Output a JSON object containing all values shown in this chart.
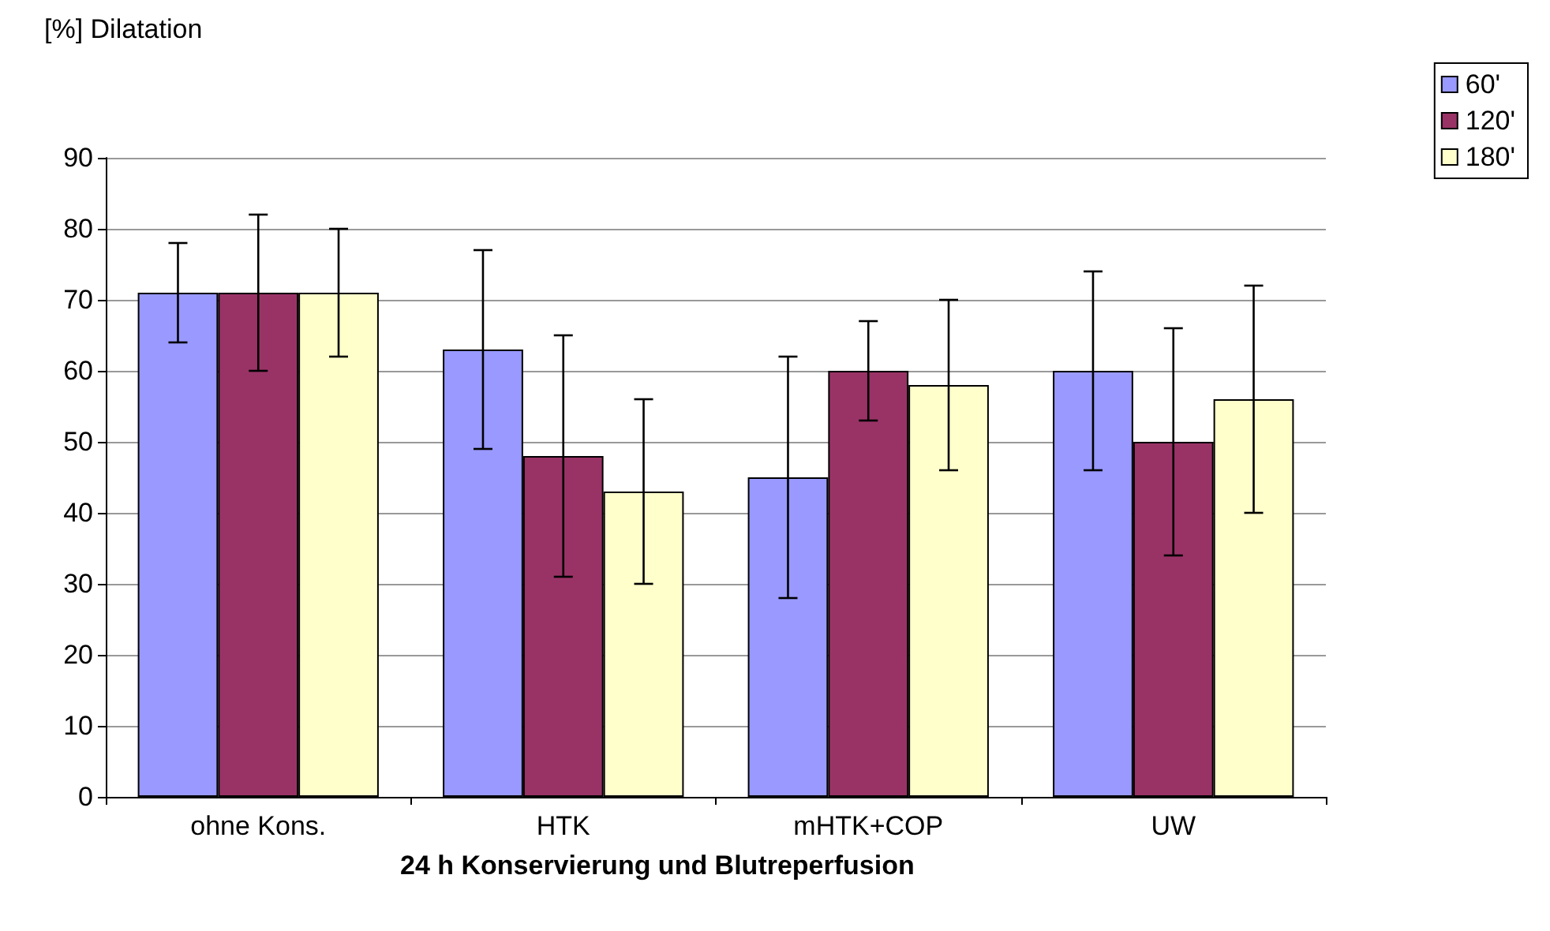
{
  "chart_data": {
    "type": "bar",
    "ylabel": "[%] Dilatation",
    "xlabel": "24 h Konservierung und Blutreperfusion",
    "categories": [
      "ohne Kons.",
      "HTK",
      "mHTK+COP",
      "UW"
    ],
    "series": [
      {
        "name": "60'",
        "color": "#9999ff",
        "values": [
          71,
          63,
          45,
          60
        ],
        "errors": [
          [
            64,
            78
          ],
          [
            49,
            77
          ],
          [
            28,
            62
          ],
          [
            46,
            74
          ]
        ]
      },
      {
        "name": "120'",
        "color": "#993366",
        "values": [
          71,
          48,
          60,
          50
        ],
        "errors": [
          [
            60,
            82
          ],
          [
            31,
            65
          ],
          [
            53,
            67
          ],
          [
            34,
            66
          ]
        ]
      },
      {
        "name": "180'",
        "color": "#ffffcc",
        "values": [
          71,
          43,
          58,
          56
        ],
        "errors": [
          [
            62,
            80
          ],
          [
            30,
            56
          ],
          [
            46,
            70
          ],
          [
            40,
            72
          ]
        ]
      }
    ],
    "ylim": [
      0,
      90
    ],
    "yticks": [
      0,
      10,
      20,
      30,
      40,
      50,
      60,
      70,
      80,
      90
    ],
    "grid": "y",
    "legend": "top right"
  }
}
